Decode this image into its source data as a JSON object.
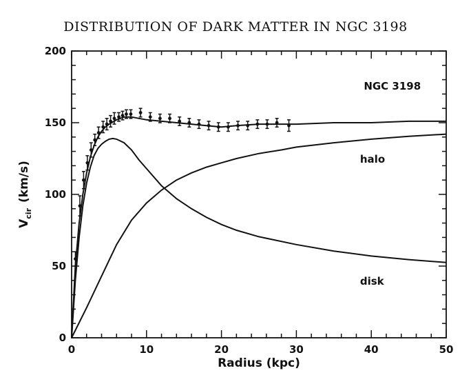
{
  "chart_data": {
    "type": "line",
    "title": "DISTRIBUTION OF DARK MATTER IN NGC 3198",
    "xlabel": "Radius (kpc)",
    "ylabel_main": "V",
    "ylabel_sub": "cir",
    "ylabel_unit": "(km/s)",
    "xlim": [
      0,
      50
    ],
    "ylim": [
      0,
      200
    ],
    "xticks": [
      0,
      10,
      20,
      30,
      40,
      50
    ],
    "yticks": [
      0,
      50,
      100,
      150,
      200
    ],
    "xticks_minor_step": 2,
    "yticks_minor_step": 10,
    "grid": false,
    "legend": "none",
    "annotations": [
      {
        "id": "galaxy",
        "text": "NGC 3198",
        "x": 39,
        "y": 173
      },
      {
        "id": "halo",
        "text": "halo",
        "x": 38.5,
        "y": 122
      },
      {
        "id": "disk",
        "text": "disk",
        "x": 38.5,
        "y": 37
      }
    ],
    "observed": {
      "x": [
        0.5,
        1.1,
        1.6,
        2.1,
        2.6,
        3.1,
        3.6,
        4.2,
        4.7,
        5.2,
        5.7,
        6.3,
        6.8,
        7.3,
        7.9,
        9.2,
        10.5,
        11.8,
        13.1,
        14.4,
        15.7,
        17.0,
        18.3,
        19.6,
        20.9,
        22.2,
        23.5,
        24.8,
        26.1,
        27.4,
        29.0
      ],
      "y": [
        55,
        92,
        110,
        122,
        131,
        138,
        143,
        147,
        149,
        151,
        153,
        154,
        155,
        156,
        156,
        157,
        154,
        153,
        153,
        151,
        150,
        149,
        148,
        147,
        147,
        148,
        148,
        149,
        149,
        150,
        148
      ],
      "err": [
        5,
        7,
        6,
        5,
        5,
        4,
        4,
        4,
        4,
        4,
        4,
        3,
        3,
        3,
        3,
        3,
        3,
        3,
        3,
        3,
        3,
        3,
        3,
        3,
        3,
        3,
        3,
        3,
        3,
        3,
        4
      ]
    },
    "series": [
      {
        "id": "total",
        "x": [
          0,
          0.5,
          1,
          1.5,
          2,
          2.5,
          3,
          3.5,
          4,
          4.5,
          5,
          6,
          7,
          8,
          9,
          10,
          12,
          14,
          16,
          18,
          20,
          22,
          25,
          28,
          30,
          35,
          40,
          45,
          50
        ],
        "y": [
          0,
          50,
          80,
          100,
          115,
          126,
          134,
          140,
          144,
          147,
          149,
          152,
          154,
          154,
          153,
          152,
          151,
          150,
          149,
          148,
          147,
          148,
          149,
          149,
          149,
          150,
          150,
          151,
          151
        ]
      },
      {
        "id": "disk",
        "x": [
          0,
          0.5,
          1,
          1.5,
          2,
          2.5,
          3,
          3.5,
          4,
          4.5,
          5,
          5.5,
          6,
          7,
          8,
          9,
          10,
          12,
          14,
          16,
          18,
          20,
          22,
          25,
          30,
          35,
          40,
          45,
          50
        ],
        "y": [
          0,
          40,
          70,
          92,
          108,
          119,
          127,
          132,
          135,
          137,
          138.5,
          139,
          138.5,
          136,
          131,
          124,
          118,
          106,
          97,
          90,
          84,
          79,
          75,
          70.5,
          65,
          60.5,
          57,
          54.5,
          52.5
        ]
      },
      {
        "id": "halo",
        "x": [
          0,
          2,
          4,
          6,
          8,
          10,
          12,
          14,
          16,
          18,
          20,
          22,
          25,
          28,
          30,
          35,
          40,
          45,
          50
        ],
        "y": [
          0,
          21,
          43,
          65,
          82,
          94,
          103,
          110,
          115,
          119,
          122,
          125,
          128.5,
          131,
          133,
          136,
          138.5,
          140.5,
          142
        ]
      }
    ]
  }
}
